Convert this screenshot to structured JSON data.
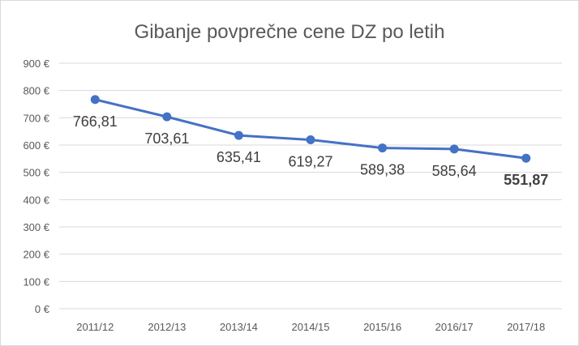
{
  "chart_data": {
    "type": "line",
    "title": "Gibanje povprečne cene DZ po letih",
    "categories": [
      "2011/12",
      "2012/13",
      "2013/14",
      "2014/15",
      "2015/16",
      "2016/17",
      "2017/18"
    ],
    "series": [
      {
        "values": [
          766.81,
          703.61,
          635.41,
          619.27,
          589.38,
          585.64,
          551.87
        ],
        "labels": [
          "766,81",
          "703,61",
          "635,41",
          "619,27",
          "589,38",
          "585,64",
          "551,87"
        ],
        "bold_label_index": 6
      }
    ],
    "ylim": [
      0,
      900
    ],
    "yticks": [
      0,
      100,
      200,
      300,
      400,
      500,
      600,
      700,
      800,
      900
    ],
    "ytick_labels": [
      "0 €",
      "100 €",
      "200 €",
      "300 €",
      "400 €",
      "500 €",
      "600 €",
      "700 €",
      "800 €",
      "900 €"
    ],
    "grid": true,
    "line_color": "#4472c4",
    "legend": "none"
  }
}
